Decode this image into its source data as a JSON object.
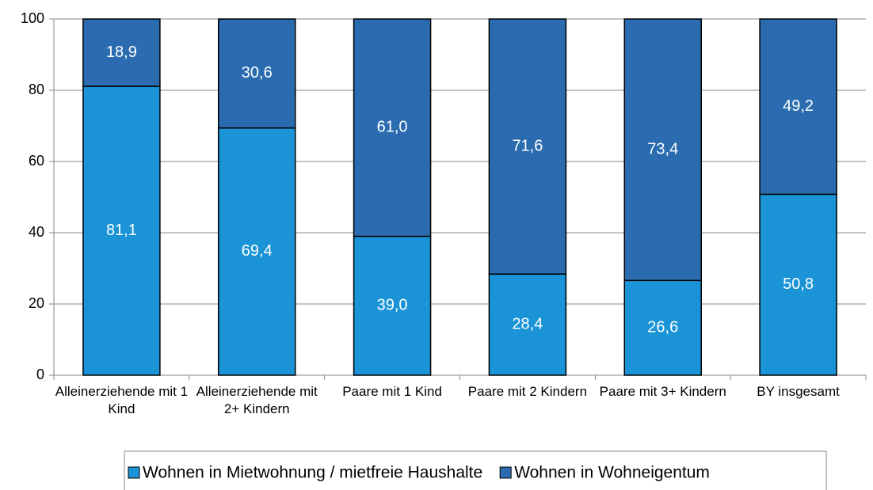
{
  "chart_data": {
    "type": "stacked-bar",
    "categories": [
      "Alleinerziehende mit 1 Kind",
      "Alleinerziehende mit 2+ Kindern",
      "Paare mit 1 Kind",
      "Paare mit 2 Kindern",
      "Paare mit 3+ Kindern",
      "BY insgesamt"
    ],
    "series": [
      {
        "name": "Wohnen in Mietwohnung / mietfreie Haushalte",
        "color": "#1a94d6",
        "values": [
          81.1,
          69.4,
          39.0,
          28.4,
          26.6,
          50.8
        ],
        "value_labels": [
          "81,1",
          "69,4",
          "39,0",
          "28,4",
          "26,6",
          "50,8"
        ]
      },
      {
        "name": "Wohnen in Wohneigentum",
        "color": "#2b6cb0",
        "values": [
          18.9,
          30.6,
          61.0,
          71.6,
          73.4,
          49.2
        ],
        "value_labels": [
          "18,9",
          "30,6",
          "61,0",
          "71,6",
          "73,4",
          "49,2"
        ]
      }
    ],
    "ylim": [
      0,
      100
    ],
    "yticks": [
      0,
      20,
      40,
      60,
      80,
      100
    ],
    "grid": true,
    "legend": "bottom"
  }
}
